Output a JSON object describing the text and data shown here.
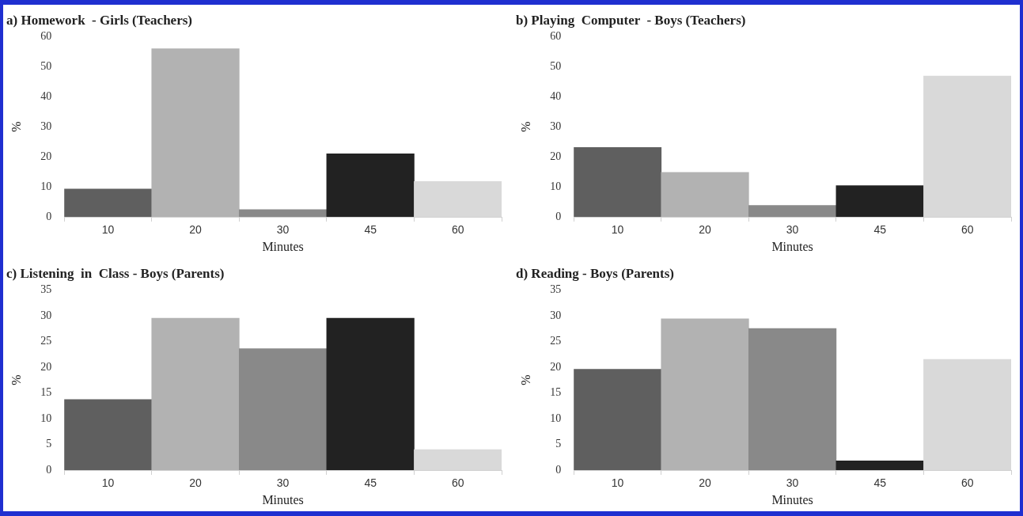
{
  "chart_data": [
    {
      "type": "bar",
      "title": "a) Homework  - Girls (Teachers)",
      "xlabel": "Minutes",
      "ylabel": "%",
      "categories": [
        "10",
        "20",
        "30",
        "45",
        "60"
      ],
      "values": [
        9.3,
        56,
        2.4,
        21,
        11.8
      ],
      "colors": [
        "#5f5f5f",
        "#b2b2b2",
        "#898989",
        "#222222",
        "#d9d9d9"
      ],
      "ylim": [
        0,
        60
      ],
      "yticks": [
        0,
        10,
        20,
        30,
        40,
        50,
        60
      ],
      "grid": false
    },
    {
      "type": "bar",
      "title": "b) Playing  Computer  - Boys (Teachers)",
      "xlabel": "Minutes",
      "ylabel": "%",
      "categories": [
        "10",
        "20",
        "30",
        "45",
        "60"
      ],
      "values": [
        23.1,
        14.8,
        3.8,
        10.4,
        46.9
      ],
      "colors": [
        "#5f5f5f",
        "#b2b2b2",
        "#898989",
        "#222222",
        "#d9d9d9"
      ],
      "ylim": [
        0,
        60
      ],
      "yticks": [
        0,
        10,
        20,
        30,
        40,
        50,
        60
      ],
      "grid": false
    },
    {
      "type": "bar",
      "title": "c) Listening  in  Class - Boys (Parents)",
      "xlabel": "Minutes",
      "ylabel": "%",
      "categories": [
        "10",
        "20",
        "30",
        "45",
        "60"
      ],
      "values": [
        13.7,
        29.5,
        23.6,
        29.5,
        4.0
      ],
      "colors": [
        "#5f5f5f",
        "#b2b2b2",
        "#898989",
        "#222222",
        "#d9d9d9"
      ],
      "ylim": [
        0,
        35
      ],
      "yticks": [
        0,
        5,
        10,
        15,
        20,
        25,
        30,
        35
      ],
      "grid": false
    },
    {
      "type": "bar",
      "title": "d) Reading - Boys (Parents)",
      "xlabel": "Minutes",
      "ylabel": "%",
      "categories": [
        "10",
        "20",
        "30",
        "45",
        "60"
      ],
      "values": [
        19.6,
        29.4,
        27.5,
        1.8,
        21.5
      ],
      "colors": [
        "#5f5f5f",
        "#b2b2b2",
        "#898989",
        "#222222",
        "#d9d9d9"
      ],
      "ylim": [
        0,
        35
      ],
      "yticks": [
        0,
        5,
        10,
        15,
        20,
        25,
        30,
        35
      ],
      "grid": false
    }
  ]
}
